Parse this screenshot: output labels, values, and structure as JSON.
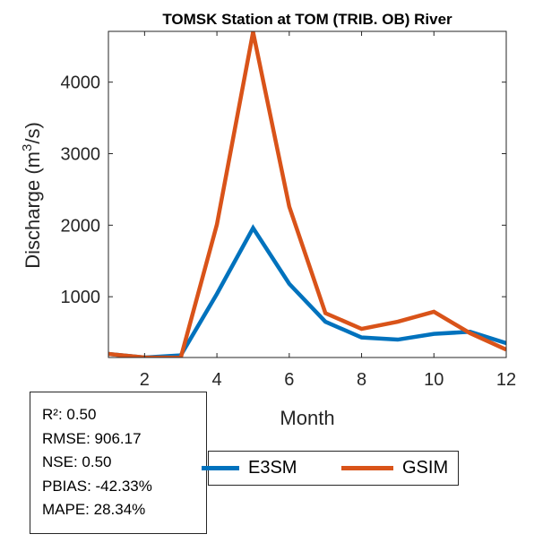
{
  "chart_data": {
    "type": "line",
    "title": "TOMSK  Station at  TOM (TRIB. OB)  River",
    "xlabel": "Month",
    "ylabel": "Discharge (m³/s)",
    "ylabel_main": "Discharge (m",
    "ylabel_sup": "3",
    "ylabel_tail": "/s)",
    "x": [
      1,
      2,
      3,
      4,
      5,
      6,
      7,
      8,
      9,
      10,
      11,
      12
    ],
    "xlim": [
      1,
      12
    ],
    "ylim": [
      150,
      4710
    ],
    "xticks": [
      2,
      4,
      6,
      8,
      10,
      12
    ],
    "yticks": [
      1000,
      2000,
      3000,
      4000
    ],
    "series": [
      {
        "name": "E3SM",
        "color": "#0072BD",
        "values": [
          200,
          150,
          180,
          1040,
          1960,
          1180,
          650,
          430,
          400,
          480,
          510,
          350
        ]
      },
      {
        "name": "GSIM",
        "color": "#D95319",
        "values": [
          200,
          150,
          147,
          2010,
          4700,
          2260,
          770,
          550,
          650,
          790,
          490,
          260
        ]
      }
    ],
    "legend": "bottom-center",
    "grid": false
  },
  "stats": [
    "R²: 0.50",
    "RMSE: 906.17",
    "NSE: 0.50",
    "PBIAS: -42.33%",
    "MAPE: 28.34%"
  ]
}
